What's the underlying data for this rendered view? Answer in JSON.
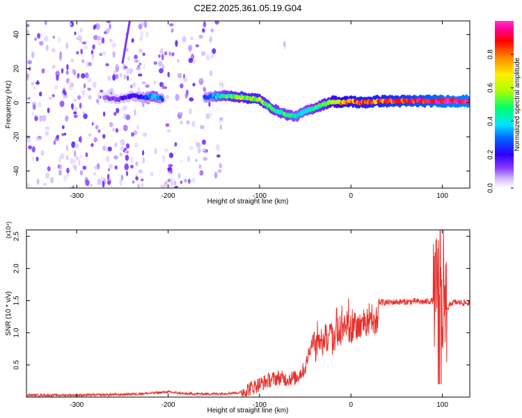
{
  "title": "C2E2.2025.361.05.19.G04",
  "chart_data": [
    {
      "type": "heatmap",
      "title": "C2E2.2025.361.05.19.G04",
      "xlabel": "Height of straight line (km)",
      "ylabel": "Frequency (Hz)",
      "xlim": [
        -355,
        130
      ],
      "ylim": [
        -50,
        48
      ],
      "x_ticks": [
        -300,
        -200,
        -100,
        0,
        100
      ],
      "x_tick_labels": [
        "-300",
        "-200",
        "-100",
        "0",
        "100"
      ],
      "y_ticks": [
        -40,
        -20,
        0,
        20,
        40
      ],
      "y_tick_labels": [
        "-40",
        "-20",
        "0",
        "20",
        "40"
      ],
      "colorbar": {
        "label": "Normalized spectral amplitude",
        "range": [
          0.0,
          1.0
        ],
        "ticks": [
          0.0,
          0.2,
          0.4,
          0.6,
          0.8
        ],
        "tick_labels": [
          "0.0",
          "0.2",
          "0.4",
          "0.6",
          "0.8"
        ],
        "colormap": [
          "#ffffff",
          "#d8c4ff",
          "#8a3cff",
          "#2e00ff",
          "#0066ff",
          "#00e5ff",
          "#00ff6a",
          "#aaff00",
          "#ffee00",
          "#ff8800",
          "#ff0000",
          "#ff0090",
          "#ff33cc"
        ]
      },
      "ridge": [
        {
          "x": -270,
          "y": 3,
          "amp": 0.15
        },
        {
          "x": -255,
          "y": 2,
          "amp": 0.2
        },
        {
          "x": -240,
          "y": 4,
          "amp": 0.25
        },
        {
          "x": -225,
          "y": 3,
          "amp": 0.3
        },
        {
          "x": -215,
          "y": 4,
          "amp": 0.45
        },
        {
          "x": -205,
          "y": 2,
          "amp": 0.3
        },
        {
          "x": -160,
          "y": 3,
          "amp": 0.3
        },
        {
          "x": -145,
          "y": 4,
          "amp": 0.45
        },
        {
          "x": -130,
          "y": 4,
          "amp": 0.55
        },
        {
          "x": -115,
          "y": 3,
          "amp": 0.6
        },
        {
          "x": -100,
          "y": 2,
          "amp": 0.6
        },
        {
          "x": -90,
          "y": -2,
          "amp": 0.55
        },
        {
          "x": -80,
          "y": -5,
          "amp": 0.5
        },
        {
          "x": -70,
          "y": -7,
          "amp": 0.5
        },
        {
          "x": -60,
          "y": -8,
          "amp": 0.45
        },
        {
          "x": -50,
          "y": -5,
          "amp": 0.45
        },
        {
          "x": -40,
          "y": -3,
          "amp": 0.5
        },
        {
          "x": -30,
          "y": -1,
          "amp": 0.55
        },
        {
          "x": -20,
          "y": 1,
          "amp": 0.65
        },
        {
          "x": -10,
          "y": 0,
          "amp": 0.75
        },
        {
          "x": 0,
          "y": 1,
          "amp": 0.75
        },
        {
          "x": 10,
          "y": 0,
          "amp": 0.8
        },
        {
          "x": 30,
          "y": 1,
          "amp": 0.8
        },
        {
          "x": 50,
          "y": 1,
          "amp": 0.85
        },
        {
          "x": 70,
          "y": 1,
          "amp": 0.9
        },
        {
          "x": 90,
          "y": 1,
          "amp": 0.95
        },
        {
          "x": 110,
          "y": 1,
          "amp": 1.0
        },
        {
          "x": 130,
          "y": 1,
          "amp": 1.0
        }
      ]
    },
    {
      "type": "line",
      "xlabel": "Height of straight line (km)",
      "ylabel": "SNR (10 * v/v)",
      "scale_label": "(x10⁴)",
      "xlim": [
        -355,
        130
      ],
      "ylim": [
        0,
        2.6
      ],
      "x_ticks": [
        -300,
        -200,
        -100,
        0,
        100
      ],
      "x_tick_labels": [
        "-300",
        "-200",
        "-100",
        "0",
        "100"
      ],
      "y_ticks": [
        0.5,
        1.0,
        1.5,
        2.0,
        2.5
      ],
      "y_tick_labels": [
        "0.5",
        "1.0",
        "1.5",
        "2.0",
        "2.5"
      ],
      "color": "#e8322e",
      "series": [
        {
          "x": [
            -355,
            -300,
            -250,
            -220,
            -200,
            -180,
            -150,
            -120,
            -110,
            -100,
            -90,
            -80,
            -70,
            -60,
            -50,
            -45,
            -40,
            -35,
            -30,
            -25,
            -20,
            -15,
            -10,
            -5,
            0,
            5,
            10,
            20,
            30,
            40,
            50,
            60,
            70,
            80,
            90,
            95,
            98,
            100,
            103,
            110,
            120,
            130
          ],
          "y": [
            0.03,
            0.03,
            0.04,
            0.06,
            0.08,
            0.05,
            0.05,
            0.07,
            0.14,
            0.2,
            0.26,
            0.3,
            0.28,
            0.3,
            0.45,
            0.75,
            0.95,
            1.05,
            1.15,
            1.2,
            1.1,
            1.25,
            1.3,
            1.35,
            1.3,
            1.35,
            1.4,
            1.45,
            1.48,
            1.47,
            1.48,
            1.48,
            1.49,
            1.48,
            1.5,
            1.7,
            2.1,
            1.4,
            1.3,
            1.47,
            1.47,
            1.46
          ]
        }
      ]
    }
  ]
}
